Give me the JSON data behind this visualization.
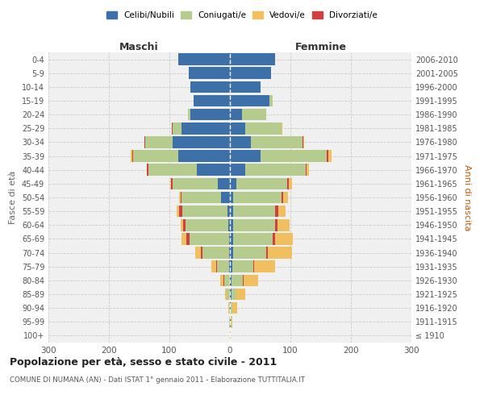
{
  "age_groups": [
    "100+",
    "95-99",
    "90-94",
    "85-89",
    "80-84",
    "75-79",
    "70-74",
    "65-69",
    "60-64",
    "55-59",
    "50-54",
    "45-49",
    "40-44",
    "35-39",
    "30-34",
    "25-29",
    "20-24",
    "15-19",
    "10-14",
    "5-9",
    "0-4"
  ],
  "birth_years": [
    "≤ 1910",
    "1911-1915",
    "1916-1920",
    "1921-1925",
    "1926-1930",
    "1931-1935",
    "1936-1940",
    "1941-1945",
    "1946-1950",
    "1951-1955",
    "1956-1960",
    "1961-1965",
    "1966-1970",
    "1971-1975",
    "1976-1980",
    "1981-1985",
    "1986-1990",
    "1991-1995",
    "1996-2000",
    "2001-2005",
    "2006-2010"
  ],
  "males": {
    "celibe": [
      0,
      0,
      0,
      0,
      0,
      1,
      1,
      2,
      3,
      4,
      15,
      20,
      55,
      85,
      95,
      80,
      65,
      60,
      65,
      68,
      85
    ],
    "coniugato": [
      0,
      1,
      2,
      5,
      10,
      20,
      45,
      65,
      70,
      75,
      65,
      75,
      80,
      75,
      45,
      15,
      5,
      0,
      0,
      0,
      0
    ],
    "vedovo": [
      0,
      0,
      1,
      3,
      5,
      8,
      10,
      8,
      5,
      4,
      2,
      2,
      0,
      2,
      1,
      0,
      0,
      0,
      0,
      0,
      0
    ],
    "divorziato": [
      0,
      0,
      0,
      0,
      1,
      2,
      2,
      5,
      4,
      5,
      2,
      2,
      2,
      2,
      1,
      1,
      0,
      0,
      0,
      0,
      0
    ]
  },
  "females": {
    "nubile": [
      0,
      1,
      1,
      2,
      3,
      4,
      5,
      5,
      5,
      5,
      5,
      10,
      25,
      50,
      35,
      25,
      20,
      65,
      50,
      68,
      75
    ],
    "coniugata": [
      0,
      1,
      3,
      8,
      18,
      35,
      55,
      65,
      70,
      70,
      80,
      85,
      100,
      110,
      85,
      60,
      40,
      5,
      0,
      0,
      0
    ],
    "vedova": [
      1,
      2,
      8,
      15,
      25,
      35,
      40,
      30,
      20,
      12,
      8,
      5,
      4,
      5,
      2,
      1,
      0,
      0,
      0,
      0,
      0
    ],
    "divorziata": [
      0,
      0,
      0,
      0,
      1,
      1,
      2,
      4,
      4,
      5,
      3,
      2,
      2,
      3,
      1,
      0,
      0,
      0,
      0,
      0,
      0
    ]
  },
  "color_celibe": "#3d6fa8",
  "color_coniugato": "#b5cc8e",
  "color_vedovo": "#f0c060",
  "color_divorziato": "#d04040",
  "xlim": 300,
  "title": "Popolazione per età, sesso e stato civile - 2011",
  "subtitle": "COMUNE DI NUMANA (AN) - Dati ISTAT 1° gennaio 2011 - Elaborazione TUTTITALIA.IT",
  "ylabel_left": "Fasce di età",
  "ylabel_right": "Anni di nascita",
  "xlabel_maschi": "Maschi",
  "xlabel_femmine": "Femmine",
  "bg_color": "#f0f0f0",
  "grid_color": "#cccccc"
}
